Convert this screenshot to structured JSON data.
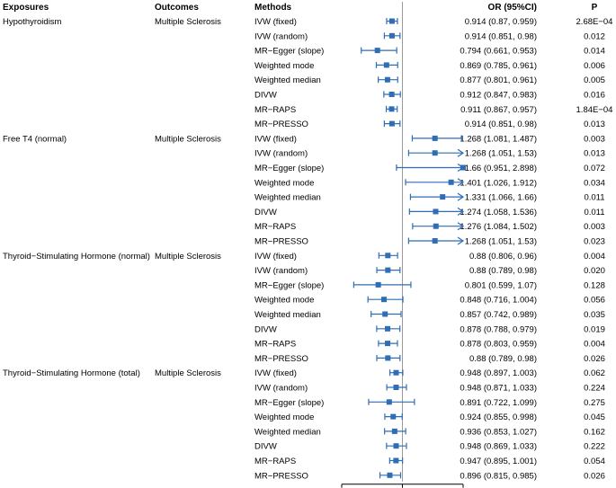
{
  "chart_data": {
    "type": "forest",
    "headers": {
      "exposures": "Exposures",
      "outcomes": "Outcomes",
      "methods": "Methods",
      "or": "OR (95%CI)",
      "p": "P"
    },
    "xlim": [
      0.5,
      1.5
    ],
    "xticks": [
      "0.5",
      "1",
      "1.5"
    ],
    "reference_line": 1,
    "marker_color": "#2F6DB5",
    "groups": [
      {
        "exposure": "Hypothyroidism",
        "outcome": "Multiple Sclerosis",
        "rows": [
          {
            "method": "IVW (fixed)",
            "or": 0.914,
            "lo": 0.87,
            "hi": 0.959,
            "ci_text": "0.914 (0.87, 0.959)",
            "p": "2.68E−04"
          },
          {
            "method": "IVW (random)",
            "or": 0.914,
            "lo": 0.851,
            "hi": 0.98,
            "ci_text": "0.914 (0.851, 0.98)",
            "p": "0.012"
          },
          {
            "method": "MR−Egger (slope)",
            "or": 0.794,
            "lo": 0.661,
            "hi": 0.953,
            "ci_text": "0.794 (0.661, 0.953)",
            "p": "0.014"
          },
          {
            "method": "Weighted mode",
            "or": 0.869,
            "lo": 0.785,
            "hi": 0.961,
            "ci_text": "0.869 (0.785, 0.961)",
            "p": "0.006"
          },
          {
            "method": "Weighted median",
            "or": 0.877,
            "lo": 0.801,
            "hi": 0.961,
            "ci_text": "0.877 (0.801, 0.961)",
            "p": "0.005"
          },
          {
            "method": "DIVW",
            "or": 0.912,
            "lo": 0.847,
            "hi": 0.983,
            "ci_text": "0.912 (0.847, 0.983)",
            "p": "0.016"
          },
          {
            "method": "MR−RAPS",
            "or": 0.911,
            "lo": 0.867,
            "hi": 0.957,
            "ci_text": "0.911 (0.867, 0.957)",
            "p": "1.84E−04"
          },
          {
            "method": "MR−PRESSO",
            "or": 0.914,
            "lo": 0.851,
            "hi": 0.98,
            "ci_text": "0.914 (0.851, 0.98)",
            "p": "0.013"
          }
        ]
      },
      {
        "exposure": "Free T4 (normal)",
        "outcome": "Multiple Sclerosis",
        "rows": [
          {
            "method": "IVW (fixed)",
            "or": 1.268,
            "lo": 1.081,
            "hi": 1.487,
            "ci_text": "1.268 (1.081, 1.487)",
            "p": "0.003"
          },
          {
            "method": "IVW (random)",
            "or": 1.268,
            "lo": 1.051,
            "hi": 1.53,
            "ci_text": "1.268 (1.051, 1.53)",
            "p": "0.013"
          },
          {
            "method": "MR−Egger (slope)",
            "or": 1.66,
            "lo": 0.951,
            "hi": 2.898,
            "ci_text": "1.66 (0.951, 2.898)",
            "p": "0.072"
          },
          {
            "method": "Weighted mode",
            "or": 1.401,
            "lo": 1.026,
            "hi": 1.912,
            "ci_text": "1.401 (1.026, 1.912)",
            "p": "0.034"
          },
          {
            "method": "Weighted median",
            "or": 1.331,
            "lo": 1.066,
            "hi": 1.66,
            "ci_text": "1.331 (1.066, 1.66)",
            "p": "0.011"
          },
          {
            "method": "DIVW",
            "or": 1.274,
            "lo": 1.058,
            "hi": 1.536,
            "ci_text": "1.274 (1.058, 1.536)",
            "p": "0.011"
          },
          {
            "method": "MR−RAPS",
            "or": 1.276,
            "lo": 1.084,
            "hi": 1.502,
            "ci_text": "1.276 (1.084, 1.502)",
            "p": "0.003"
          },
          {
            "method": "MR−PRESSO",
            "or": 1.268,
            "lo": 1.051,
            "hi": 1.53,
            "ci_text": "1.268 (1.051, 1.53)",
            "p": "0.023"
          }
        ]
      },
      {
        "exposure": "Thyroid−Stimulating Hormone (normal)",
        "outcome": "Multiple Sclerosis",
        "rows": [
          {
            "method": "IVW (fixed)",
            "or": 0.88,
            "lo": 0.806,
            "hi": 0.96,
            "ci_text": "0.88 (0.806, 0.96)",
            "p": "0.004"
          },
          {
            "method": "IVW (random)",
            "or": 0.88,
            "lo": 0.789,
            "hi": 0.98,
            "ci_text": "0.88 (0.789, 0.98)",
            "p": "0.020"
          },
          {
            "method": "MR−Egger (slope)",
            "or": 0.801,
            "lo": 0.599,
            "hi": 1.07,
            "ci_text": "0.801 (0.599, 1.07)",
            "p": "0.128"
          },
          {
            "method": "Weighted mode",
            "or": 0.848,
            "lo": 0.716,
            "hi": 1.004,
            "ci_text": "0.848 (0.716, 1.004)",
            "p": "0.056"
          },
          {
            "method": "Weighted median",
            "or": 0.857,
            "lo": 0.742,
            "hi": 0.989,
            "ci_text": "0.857 (0.742, 0.989)",
            "p": "0.035"
          },
          {
            "method": "DIVW",
            "or": 0.878,
            "lo": 0.788,
            "hi": 0.979,
            "ci_text": "0.878 (0.788, 0.979)",
            "p": "0.019"
          },
          {
            "method": "MR−RAPS",
            "or": 0.878,
            "lo": 0.803,
            "hi": 0.959,
            "ci_text": "0.878 (0.803, 0.959)",
            "p": "0.004"
          },
          {
            "method": "MR−PRESSO",
            "or": 0.88,
            "lo": 0.789,
            "hi": 0.98,
            "ci_text": "0.88 (0.789, 0.98)",
            "p": "0.026"
          }
        ]
      },
      {
        "exposure": "Thyroid−Stimulating Hormone (total)",
        "outcome": "Multiple Sclerosis",
        "rows": [
          {
            "method": "IVW (fixed)",
            "or": 0.948,
            "lo": 0.897,
            "hi": 1.003,
            "ci_text": "0.948 (0.897, 1.003)",
            "p": "0.062"
          },
          {
            "method": "IVW (random)",
            "or": 0.948,
            "lo": 0.871,
            "hi": 1.033,
            "ci_text": "0.948 (0.871, 1.033)",
            "p": "0.224"
          },
          {
            "method": "MR−Egger (slope)",
            "or": 0.891,
            "lo": 0.722,
            "hi": 1.099,
            "ci_text": "0.891 (0.722, 1.099)",
            "p": "0.275"
          },
          {
            "method": "Weighted mode",
            "or": 0.924,
            "lo": 0.855,
            "hi": 0.998,
            "ci_text": "0.924 (0.855, 0.998)",
            "p": "0.045"
          },
          {
            "method": "Weighted median",
            "or": 0.936,
            "lo": 0.853,
            "hi": 1.027,
            "ci_text": "0.936 (0.853, 1.027)",
            "p": "0.162"
          },
          {
            "method": "DIVW",
            "or": 0.948,
            "lo": 0.869,
            "hi": 1.033,
            "ci_text": "0.948 (0.869, 1.033)",
            "p": "0.222"
          },
          {
            "method": "MR−RAPS",
            "or": 0.947,
            "lo": 0.895,
            "hi": 1.001,
            "ci_text": "0.947 (0.895, 1.001)",
            "p": "0.054"
          },
          {
            "method": "MR−PRESSO",
            "or": 0.896,
            "lo": 0.815,
            "hi": 0.985,
            "ci_text": "0.896 (0.815, 0.985)",
            "p": "0.026"
          }
        ]
      }
    ]
  }
}
